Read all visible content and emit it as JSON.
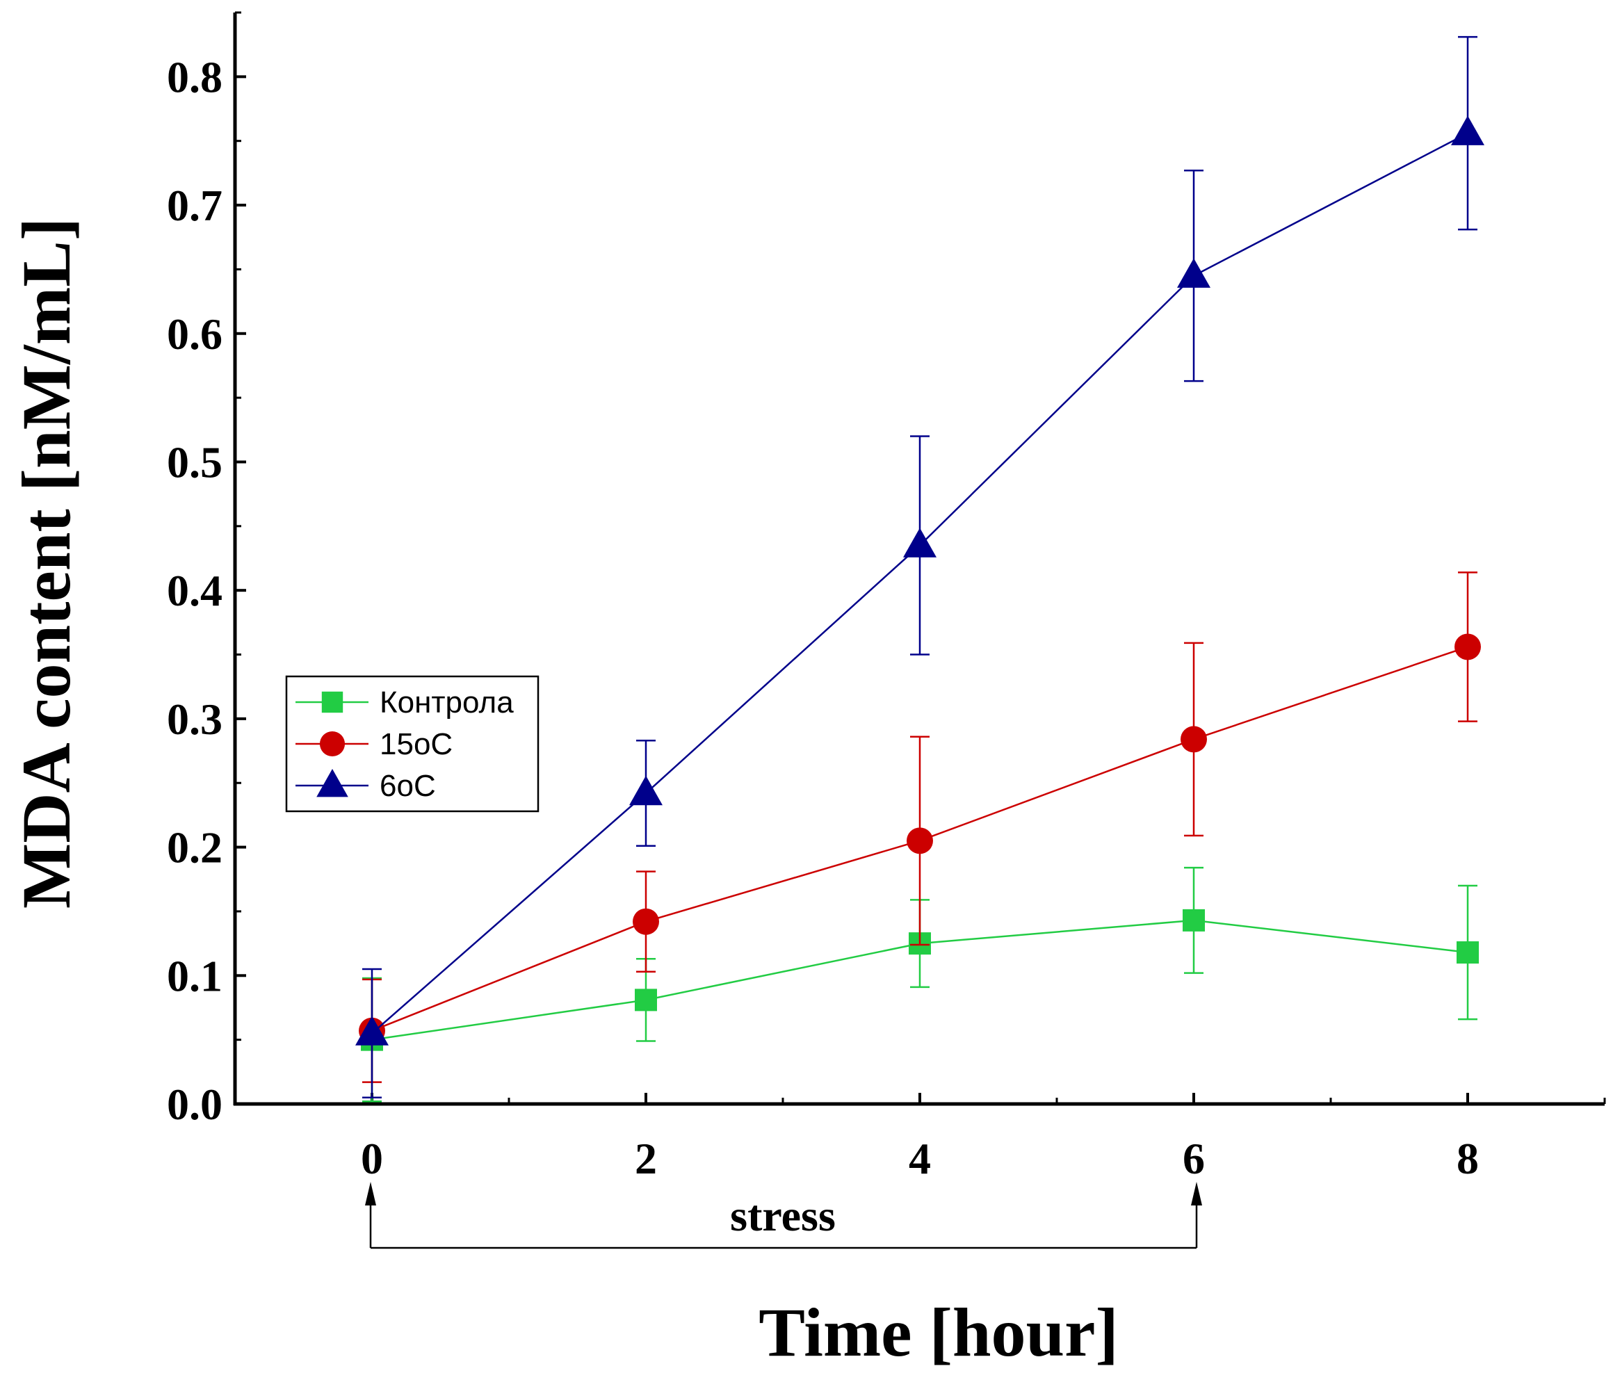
{
  "chart_data": {
    "type": "line",
    "title": "",
    "xlabel": "Time [hour]",
    "ylabel": "MDA content [nM/mL]",
    "x": [
      0,
      2,
      4,
      6,
      8
    ],
    "xlim": [
      -1,
      9
    ],
    "ylim": [
      0,
      0.85
    ],
    "xticks": [
      0,
      2,
      4,
      6,
      8
    ],
    "xtick_labels": [
      "0",
      "2",
      "4",
      "6",
      "8"
    ],
    "yticks": [
      0.0,
      0.1,
      0.2,
      0.3,
      0.4,
      0.5,
      0.6,
      0.7,
      0.8
    ],
    "ytick_labels": [
      "0.0",
      "0.1",
      "0.2",
      "0.3",
      "0.4",
      "0.5",
      "0.6",
      "0.7",
      "0.8"
    ],
    "grid": false,
    "legend_position": "middle-left",
    "series": [
      {
        "name": "Контрола",
        "color": "#22cc44",
        "marker": "square",
        "values": [
          0.05,
          0.081,
          0.125,
          0.143,
          0.118
        ],
        "errors": [
          0.048,
          0.032,
          0.034,
          0.041,
          0.052
        ]
      },
      {
        "name": "15oC",
        "color": "#cc0000",
        "marker": "circle",
        "values": [
          0.057,
          0.142,
          0.205,
          0.284,
          0.356
        ],
        "errors": [
          0.04,
          0.039,
          0.081,
          0.075,
          0.058
        ]
      },
      {
        "name": "6oC",
        "color": "#00008b",
        "marker": "triangle",
        "values": [
          0.055,
          0.242,
          0.435,
          0.645,
          0.756
        ],
        "errors": [
          0.05,
          0.041,
          0.085,
          0.082,
          0.075
        ]
      }
    ],
    "annotation": {
      "text": "stress",
      "from_x": 0,
      "to_x": 6
    }
  }
}
